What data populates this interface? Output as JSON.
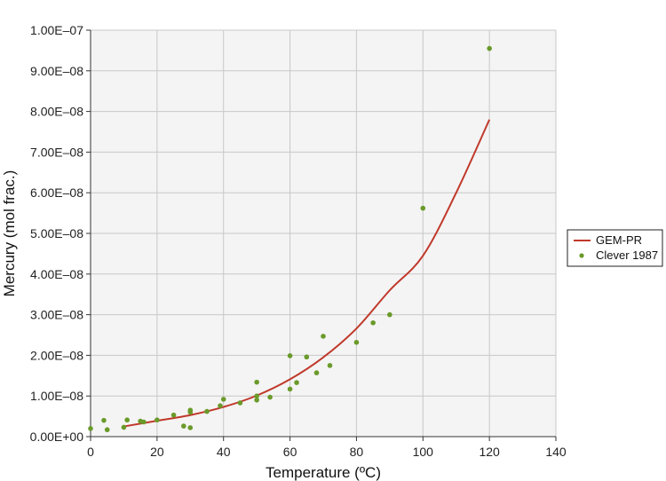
{
  "chart_data": {
    "type": "scatter",
    "xlabel": "Temperature (ºC)",
    "ylabel": "Mercury (mol frac.)",
    "xlim": [
      0,
      140
    ],
    "ylim": [
      0,
      1e-07
    ],
    "x_ticks": [
      0,
      20,
      40,
      60,
      80,
      100,
      120,
      140
    ],
    "x_tick_labels": [
      "0",
      "20",
      "40",
      "60",
      "80",
      "100",
      "120",
      "140"
    ],
    "y_ticks": [
      0,
      1e-08,
      2e-08,
      3e-08,
      4e-08,
      5e-08,
      6e-08,
      7e-08,
      8e-08,
      9e-08,
      1e-07
    ],
    "y_tick_labels": [
      "0.00E+00",
      "1.00E–08",
      "2.00E–08",
      "3.00E–08",
      "4.00E–08",
      "5.00E–08",
      "6.00E–08",
      "7.00E–08",
      "8.00E–08",
      "9.00E–08",
      "1.00E–07"
    ],
    "grid": true,
    "legend_position": "right",
    "series": [
      {
        "name": "GEM-PR",
        "type": "line",
        "color": "#c0392b",
        "x": [
          10,
          20,
          30,
          40,
          50,
          60,
          70,
          80,
          90,
          100,
          110,
          120
        ],
        "y": [
          2.5e-09,
          3.9e-09,
          5.3e-09,
          7.3e-09,
          1.01e-08,
          1.41e-08,
          1.95e-08,
          2.66e-08,
          3.6e-08,
          4.45e-08,
          6e-08,
          7.8e-08
        ]
      },
      {
        "name": "Clever 1987",
        "type": "scatter",
        "color": "#6a9a2a",
        "x": [
          0,
          4,
          5,
          10,
          11,
          15,
          16,
          20,
          25,
          28,
          30,
          30,
          30,
          35,
          39,
          40,
          45,
          50,
          50,
          50,
          54,
          60,
          60,
          62,
          65,
          68,
          70,
          72,
          80,
          85,
          90,
          100,
          120
        ],
        "y": [
          2e-09,
          4e-09,
          1.7e-09,
          2.3e-09,
          4.1e-09,
          3.8e-09,
          3.6e-09,
          4.1e-09,
          5.3e-09,
          2.6e-09,
          6.5e-09,
          6e-09,
          2.2e-09,
          6.2e-09,
          7.6e-09,
          9.2e-09,
          8.3e-09,
          1.34e-08,
          1e-08,
          9e-09,
          9.7e-09,
          1.99e-08,
          1.17e-08,
          1.33e-08,
          1.96e-08,
          1.57e-08,
          2.47e-08,
          1.75e-08,
          2.32e-08,
          2.8e-08,
          3e-08,
          5.62e-08,
          9.55e-08
        ]
      }
    ]
  }
}
